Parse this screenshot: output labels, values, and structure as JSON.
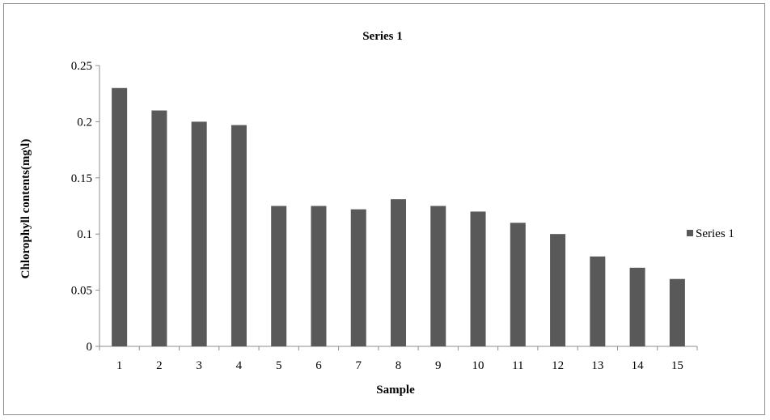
{
  "chart_data": {
    "type": "bar",
    "title": "Series 1",
    "xlabel": "Sample",
    "ylabel": "Chlorophyll contents(mg\\l)",
    "categories": [
      "1",
      "2",
      "3",
      "4",
      "5",
      "6",
      "7",
      "8",
      "9",
      "10",
      "11",
      "12",
      "13",
      "14",
      "15"
    ],
    "series": [
      {
        "name": "Series 1",
        "values": [
          0.23,
          0.21,
          0.2,
          0.197,
          0.125,
          0.125,
          0.122,
          0.131,
          0.125,
          0.12,
          0.11,
          0.1,
          0.08,
          0.07,
          0.06
        ]
      }
    ],
    "ylim": [
      0,
      0.25
    ],
    "yticks": [
      "0",
      "0.05",
      "0.1",
      "0.15",
      "0.2",
      "0.25"
    ],
    "grid": false,
    "legend": "right",
    "colors": {
      "bar": "#595959",
      "axis": "#8c8c8c"
    }
  }
}
